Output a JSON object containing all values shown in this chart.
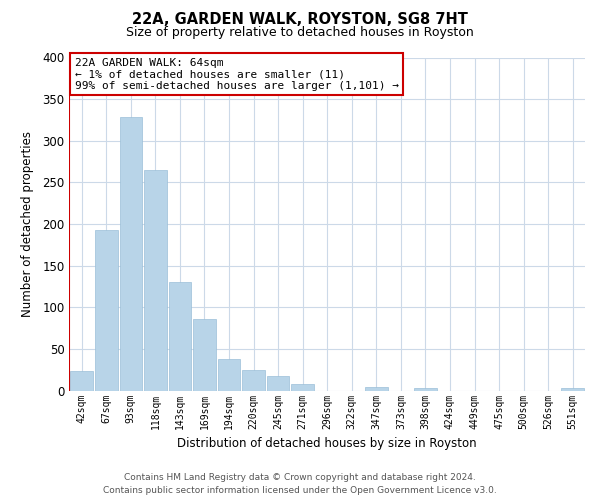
{
  "title": "22A, GARDEN WALK, ROYSTON, SG8 7HT",
  "subtitle": "Size of property relative to detached houses in Royston",
  "xlabel": "Distribution of detached houses by size in Royston",
  "ylabel": "Number of detached properties",
  "bar_labels": [
    "42sqm",
    "67sqm",
    "93sqm",
    "118sqm",
    "143sqm",
    "169sqm",
    "194sqm",
    "220sqm",
    "245sqm",
    "271sqm",
    "296sqm",
    "322sqm",
    "347sqm",
    "373sqm",
    "398sqm",
    "424sqm",
    "449sqm",
    "475sqm",
    "500sqm",
    "526sqm",
    "551sqm"
  ],
  "bar_values": [
    24,
    193,
    329,
    265,
    130,
    86,
    38,
    25,
    17,
    8,
    0,
    0,
    4,
    0,
    3,
    0,
    0,
    0,
    0,
    0,
    3
  ],
  "bar_color": "#b8d4e8",
  "bar_edge_color": "#9bbfd8",
  "highlight_color": "#cc0000",
  "annotation_title": "22A GARDEN WALK: 64sqm",
  "annotation_line1": "← 1% of detached houses are smaller (11)",
  "annotation_line2": "99% of semi-detached houses are larger (1,101) →",
  "annotation_box_color": "#ffffff",
  "annotation_box_edge": "#cc0000",
  "ylim": [
    0,
    400
  ],
  "yticks": [
    0,
    50,
    100,
    150,
    200,
    250,
    300,
    350,
    400
  ],
  "footer_line1": "Contains HM Land Registry data © Crown copyright and database right 2024.",
  "footer_line2": "Contains public sector information licensed under the Open Government Licence v3.0.",
  "bg_color": "#ffffff",
  "grid_color": "#ccd9e8"
}
